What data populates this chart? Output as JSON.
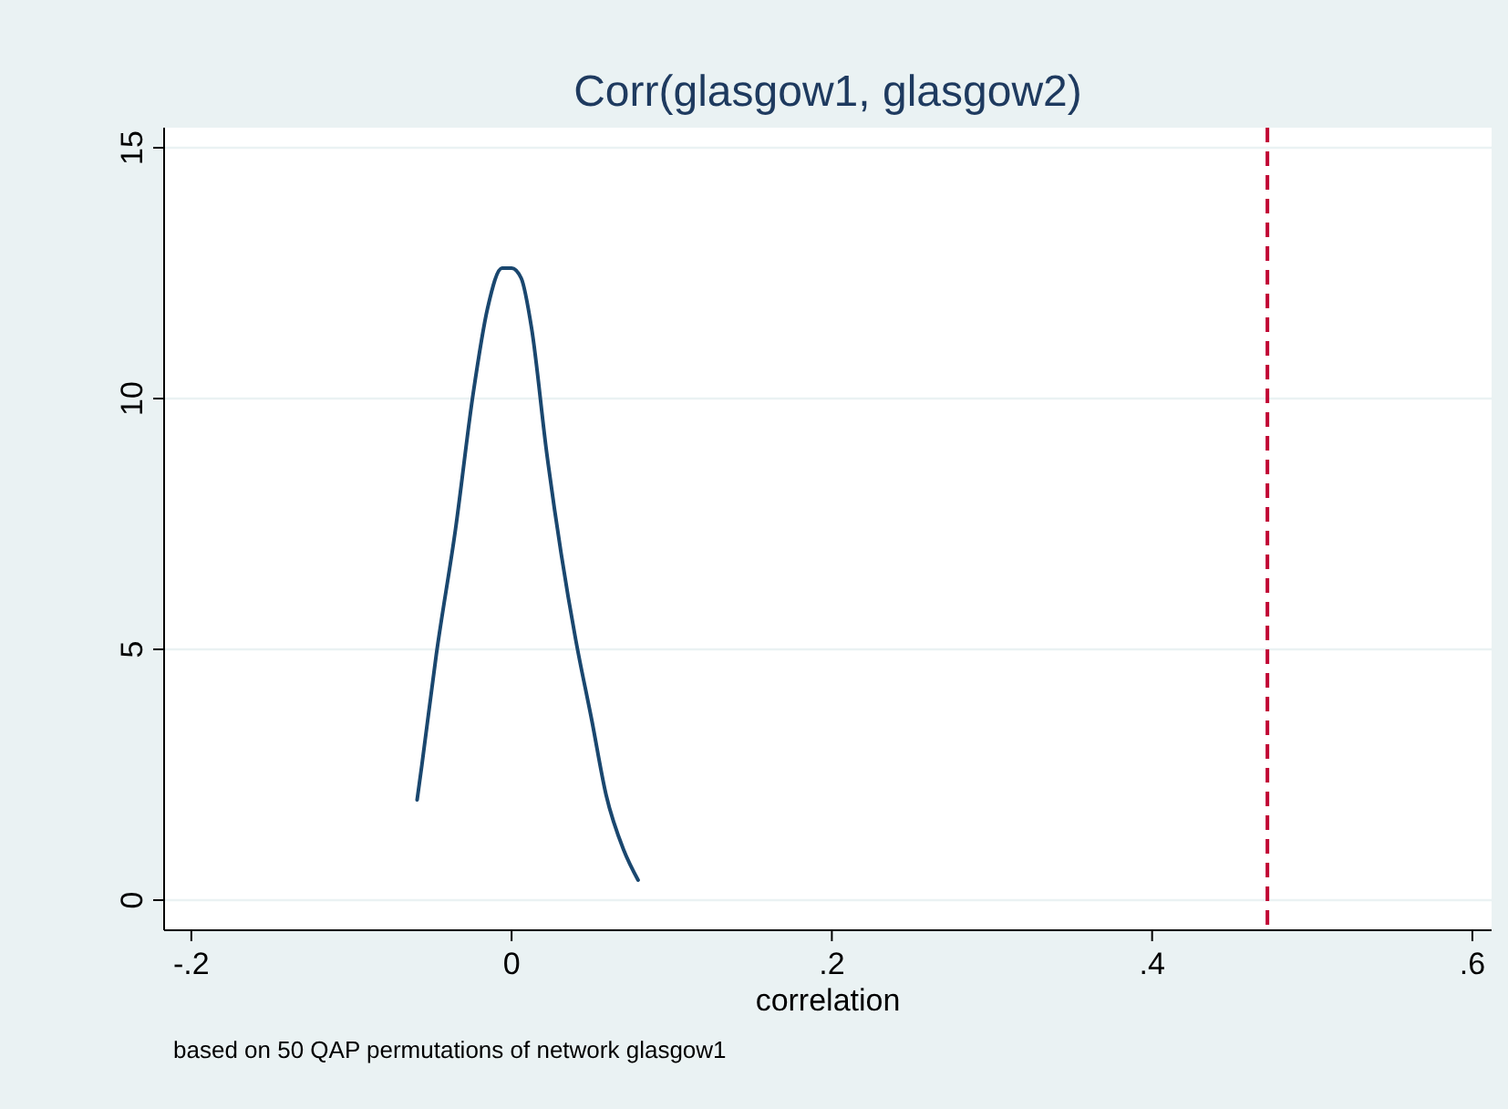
{
  "chart_data": {
    "type": "line",
    "title": "Corr(glasgow1, glasgow2)",
    "xlabel": "correlation",
    "annotations": [
      "based on 50 QAP permutations of network glasgow1"
    ],
    "x": [
      -0.059,
      -0.056,
      -0.047,
      -0.035,
      -0.024,
      -0.015,
      -0.006,
      0,
      0.006,
      0.0125,
      0.022,
      0.031,
      0.04,
      0.05,
      0.059,
      0.07,
      0.079
    ],
    "series": [
      {
        "color": "#1a476f",
        "values": [
          2.0,
          2.7,
          4.9,
          7.4,
          10.1,
          11.8,
          12.6,
          12.6,
          12.4,
          11.4,
          8.9,
          6.9,
          5.2,
          3.6,
          2.1,
          1.0,
          0.4
        ]
      }
    ],
    "xlim": [
      -0.217,
      0.612
    ],
    "ylim": [
      -0.6,
      15.4
    ],
    "xticks": [
      {
        "value": -0.2,
        "label": "-.2"
      },
      0,
      {
        "value": 0.2,
        "label": ".2"
      },
      {
        "value": 0.4,
        "label": ".4"
      },
      {
        "value": 0.6,
        "label": ".6"
      }
    ],
    "yticks": [
      0,
      5,
      10,
      15
    ],
    "grid": "y",
    "line_style": "solid",
    "ref_lines": [
      {
        "axis": "x",
        "value": 0.472,
        "color": "#c10534",
        "line_style": "dashed"
      }
    ]
  }
}
